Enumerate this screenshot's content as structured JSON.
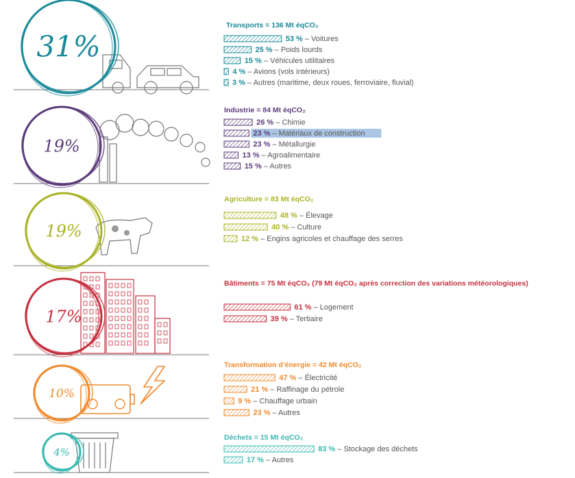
{
  "chart_data": [
    {
      "type": "bar",
      "title": "Transports = 136 Mt éqCO₂",
      "share": "31%",
      "color": "#1a8a99",
      "illustration": "truck-and-car",
      "rows": [
        {
          "pct": "53 %",
          "label": "Voitures",
          "value": 53
        },
        {
          "pct": "25 %",
          "label": "Poids lourds",
          "value": 25
        },
        {
          "pct": "15 %",
          "label": "Véhicules utilitaires",
          "value": 15
        },
        {
          "pct": "4 %",
          "label": "Avions (vols intérieurs)",
          "value": 4
        },
        {
          "pct": "3 %",
          "label": "Autres (maritime, deux roues, ferroviaire, fluvial)",
          "value": 3
        }
      ]
    },
    {
      "type": "bar",
      "title": "Industrie = 84 Mt éqCO₂",
      "share": "19%",
      "color": "#5b3c7a",
      "illustration": "factory-smoke",
      "rows": [
        {
          "pct": "26 %",
          "label": "Chimie",
          "value": 26
        },
        {
          "pct": "23 %",
          "label": "Matériaux de construction",
          "value": 23,
          "highlight": true
        },
        {
          "pct": "23 %",
          "label": "Métallurgie",
          "value": 23
        },
        {
          "pct": "13 %",
          "label": "Agroalimentaire",
          "value": 13
        },
        {
          "pct": "15 %",
          "label": "Autres",
          "value": 15
        }
      ]
    },
    {
      "type": "bar",
      "title": "Agriculture = 83 Mt éqCO₂",
      "share": "19%",
      "color": "#a8b324",
      "illustration": "cow",
      "rows": [
        {
          "pct": "48 %",
          "label": "Élevage",
          "value": 48
        },
        {
          "pct": "40 %",
          "label": "Culture",
          "value": 40
        },
        {
          "pct": "12 %",
          "label": "Engins agricoles et chauffage des serres",
          "value": 12
        }
      ]
    },
    {
      "type": "bar",
      "title": "Bâtiments = 75 Mt éqCO₂ (79 Mt éqCO₂ après correction des variations météorologiques)",
      "share": "17%",
      "color": "#c4303f",
      "illustration": "buildings",
      "rows": [
        {
          "pct": "61 %",
          "label": "Logement",
          "value": 61
        },
        {
          "pct": "39 %",
          "label": "Tertiaire",
          "value": 39
        }
      ]
    },
    {
      "type": "bar",
      "title": "Transformation d’énergie = 42 Mt éqCO₂",
      "share": "10%",
      "color": "#ef8a2e",
      "illustration": "battery-lightning",
      "rows": [
        {
          "pct": "47 %",
          "label": "Électricité",
          "value": 47
        },
        {
          "pct": "21 %",
          "label": "Raffinage du pétrole",
          "value": 21
        },
        {
          "pct": "9 %",
          "label": "Chauffage urbain",
          "value": 9
        },
        {
          "pct": "23 %",
          "label": "Autres",
          "value": 23
        }
      ]
    },
    {
      "type": "bar",
      "title": "Déchets = 15 Mt éqCO₂",
      "share": "4%",
      "color": "#3ab8b0",
      "illustration": "trash-bin",
      "rows": [
        {
          "pct": "83 %",
          "label": "Stockage des déchets",
          "value": 83
        },
        {
          "pct": "17 %",
          "label": "Autres",
          "value": 17
        }
      ]
    }
  ]
}
